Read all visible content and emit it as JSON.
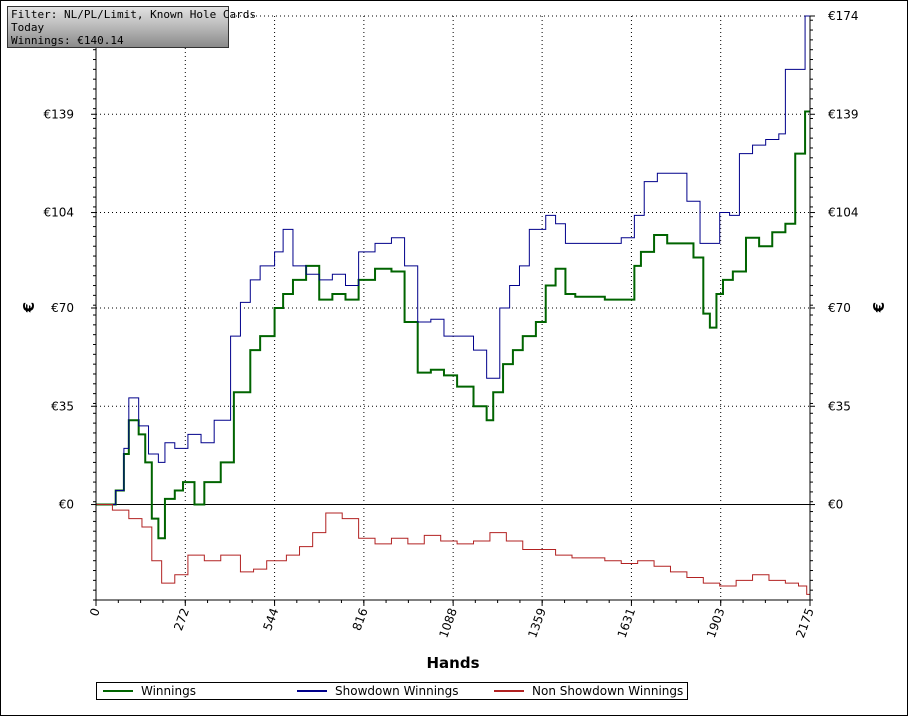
{
  "info": {
    "filter": "Filter: NL/PL/Limit, Known Hole Cards",
    "period": "Today",
    "winnings": "Winnings: €140.14"
  },
  "chart_data": {
    "type": "line",
    "xlabel": "Hands",
    "ylabel": "€",
    "xlim": [
      0,
      2175
    ],
    "ylim": [
      -34,
      174
    ],
    "x_ticks": [
      "0",
      "272",
      "544",
      "816",
      "1088",
      "1359",
      "1631",
      "1903",
      "2175"
    ],
    "y_ticks": [
      "€0",
      "€35",
      "€70",
      "€104",
      "€139",
      "€174"
    ],
    "y_tick_values": [
      0,
      35,
      70,
      104,
      139,
      174
    ],
    "grid": true,
    "legend_placement": "bottom",
    "series": [
      {
        "name": "Winnings",
        "color": "#006400",
        "x": [
          0,
          30,
          60,
          85,
          100,
          130,
          150,
          170,
          190,
          210,
          240,
          265,
          300,
          330,
          380,
          420,
          470,
          500,
          544,
          570,
          600,
          640,
          680,
          720,
          760,
          800,
          850,
          900,
          940,
          980,
          1020,
          1060,
          1100,
          1150,
          1190,
          1210,
          1240,
          1270,
          1300,
          1340,
          1370,
          1400,
          1430,
          1460,
          1500,
          1550,
          1600,
          1640,
          1660,
          1700,
          1740,
          1780,
          1820,
          1850,
          1870,
          1890,
          1910,
          1940,
          1980,
          2020,
          2060,
          2100,
          2130,
          2140,
          2160,
          2175
        ],
        "values": [
          0,
          0,
          5,
          18,
          30,
          25,
          15,
          -5,
          -12,
          2,
          5,
          8,
          0,
          8,
          15,
          40,
          55,
          60,
          70,
          75,
          80,
          85,
          73,
          75,
          73,
          80,
          84,
          83,
          65,
          47,
          48,
          46,
          42,
          35,
          30,
          40,
          50,
          55,
          60,
          65,
          78,
          84,
          75,
          74,
          74,
          73,
          73,
          85,
          90,
          96,
          93,
          93,
          88,
          68,
          63,
          75,
          80,
          83,
          95,
          92,
          97,
          100,
          125,
          125,
          140,
          140
        ]
      },
      {
        "name": "Showdown Winnings",
        "color": "#00008B",
        "x": [
          0,
          30,
          60,
          85,
          100,
          130,
          160,
          190,
          210,
          240,
          280,
          320,
          360,
          410,
          440,
          470,
          500,
          544,
          570,
          600,
          640,
          680,
          720,
          760,
          800,
          850,
          900,
          940,
          980,
          1020,
          1060,
          1100,
          1150,
          1190,
          1230,
          1260,
          1290,
          1320,
          1370,
          1400,
          1430,
          1460,
          1500,
          1550,
          1600,
          1640,
          1670,
          1710,
          1750,
          1800,
          1840,
          1870,
          1900,
          1930,
          1960,
          2000,
          2040,
          2080,
          2100,
          2130,
          2160,
          2175
        ],
        "values": [
          0,
          0,
          5,
          20,
          38,
          28,
          18,
          15,
          22,
          20,
          25,
          22,
          30,
          60,
          72,
          80,
          85,
          90,
          98,
          85,
          82,
          80,
          82,
          78,
          90,
          93,
          95,
          85,
          65,
          66,
          60,
          60,
          55,
          45,
          70,
          78,
          85,
          98,
          103,
          100,
          93,
          93,
          93,
          93,
          95,
          103,
          115,
          118,
          118,
          108,
          93,
          93,
          104,
          103,
          125,
          128,
          130,
          132,
          155,
          155,
          174,
          174
        ]
      },
      {
        "name": "Non Showdown Winnings",
        "color": "#B22222",
        "x": [
          0,
          50,
          100,
          140,
          170,
          200,
          240,
          280,
          330,
          380,
          440,
          480,
          520,
          544,
          580,
          620,
          660,
          700,
          750,
          800,
          850,
          900,
          950,
          1000,
          1050,
          1100,
          1150,
          1200,
          1250,
          1300,
          1350,
          1400,
          1450,
          1500,
          1550,
          1600,
          1650,
          1700,
          1750,
          1800,
          1850,
          1900,
          1950,
          2000,
          2050,
          2100,
          2140,
          2165,
          2175
        ],
        "values": [
          0,
          -2,
          -5,
          -8,
          -20,
          -28,
          -25,
          -18,
          -20,
          -18,
          -24,
          -23,
          -20,
          -20,
          -18,
          -15,
          -10,
          -3,
          -5,
          -12,
          -14,
          -12,
          -14,
          -11,
          -13,
          -14,
          -13,
          -10,
          -13,
          -16,
          -16,
          -18,
          -19,
          -19,
          -20,
          -21,
          -20,
          -22,
          -24,
          -26,
          -28,
          -29,
          -27,
          -25,
          -27,
          -28,
          -29,
          -32,
          -34
        ]
      }
    ]
  }
}
